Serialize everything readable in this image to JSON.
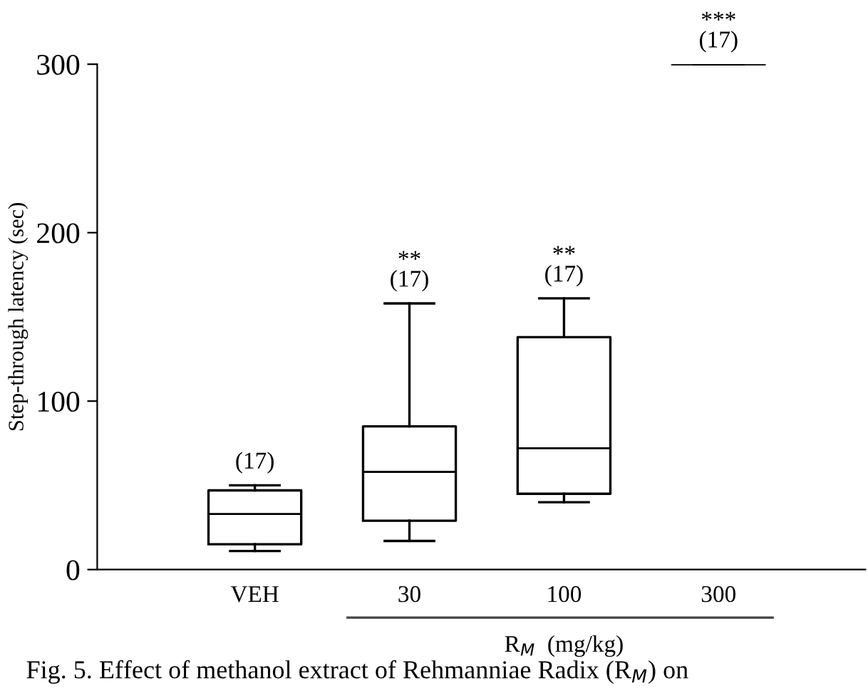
{
  "chart_data": {
    "type": "box",
    "ylabel": "Step-through latency (sec)",
    "xlabel": "R$_{M}$  (mg/kg)",
    "categories": [
      "VEH",
      "30",
      "100",
      "300"
    ],
    "boxes": [
      {
        "low": 11,
        "q1": 15,
        "median": 33,
        "q3": 47,
        "high": 50
      },
      {
        "low": 17,
        "q1": 29,
        "median": 58,
        "q3": 85,
        "high": 158
      },
      {
        "low": 40,
        "q1": 45,
        "median": 72,
        "q3": 138,
        "high": 161
      },
      {
        "low": 300,
        "q1": 300,
        "median": 300,
        "q3": 300,
        "high": 300
      }
    ],
    "color": "#000000",
    "ylim": [
      0,
      300
    ],
    "yticks": [
      0,
      100,
      200,
      300
    ],
    "grid": false,
    "annotations": [
      {
        "text": "(17)",
        "x": "VEH",
        "y": 50
      },
      {
        "text": "**\n(17)",
        "x": "30",
        "y": 158
      },
      {
        "text": "**\n(17)",
        "x": "100",
        "y": 161
      },
      {
        "text": "***\n(17)",
        "x": "300",
        "y": 300
      },
      "Fig. 5. Effect of methanol extract of Rehmanniae Radix (R$_{M}$) on"
    ]
  }
}
